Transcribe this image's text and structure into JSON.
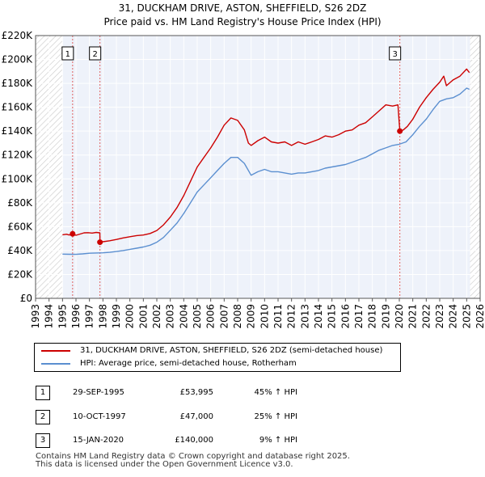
{
  "chart_data": {
    "type": "line",
    "title": "31, DUCKHAM DRIVE, ASTON, SHEFFIELD, S26 2DZ",
    "subtitle": "Price paid vs. HM Land Registry's House Price Index (HPI)",
    "xlim": [
      1993,
      2026
    ],
    "ylim": [
      0,
      220000
    ],
    "x_ticks": [
      1993,
      1994,
      1995,
      1996,
      1997,
      1998,
      1999,
      2000,
      2001,
      2002,
      2003,
      2004,
      2005,
      2006,
      2007,
      2008,
      2009,
      2010,
      2011,
      2012,
      2013,
      2014,
      2015,
      2016,
      2017,
      2018,
      2019,
      2020,
      2021,
      2022,
      2023,
      2024,
      2025,
      2026
    ],
    "y_ticks": [
      {
        "value": 0,
        "label": "£0"
      },
      {
        "value": 20000,
        "label": "£20K"
      },
      {
        "value": 40000,
        "label": "£40K"
      },
      {
        "value": 60000,
        "label": "£60K"
      },
      {
        "value": 80000,
        "label": "£80K"
      },
      {
        "value": 100000,
        "label": "£100K"
      },
      {
        "value": 120000,
        "label": "£120K"
      },
      {
        "value": 140000,
        "label": "£140K"
      },
      {
        "value": 160000,
        "label": "£160K"
      },
      {
        "value": 180000,
        "label": "£180K"
      },
      {
        "value": 200000,
        "label": "£200K"
      },
      {
        "value": 220000,
        "label": "£220K"
      }
    ],
    "hatched_ranges": [
      [
        1993,
        1995.0
      ],
      [
        2025.25,
        2026
      ]
    ],
    "series": [
      {
        "name": "31, DUCKHAM DRIVE, ASTON, SHEFFIELD, S26 2DZ (semi-detached house)",
        "color": "#cc0000",
        "points": [
          [
            1995.0,
            53200
          ],
          [
            1995.3,
            53700
          ],
          [
            1995.5,
            53000
          ],
          [
            1995.75,
            53995
          ],
          [
            1996.0,
            52800
          ],
          [
            1996.3,
            53800
          ],
          [
            1996.6,
            54800
          ],
          [
            1996.9,
            55000
          ],
          [
            1997.2,
            54600
          ],
          [
            1997.5,
            55200
          ],
          [
            1997.77,
            54800
          ],
          [
            1997.78,
            47000
          ],
          [
            1998.0,
            47400
          ],
          [
            1998.5,
            48200
          ],
          [
            1999.0,
            49300
          ],
          [
            1999.5,
            50600
          ],
          [
            2000.0,
            51600
          ],
          [
            2000.5,
            52500
          ],
          [
            2001.0,
            53000
          ],
          [
            2001.5,
            54300
          ],
          [
            2002.0,
            56800
          ],
          [
            2002.5,
            61500
          ],
          [
            2003.0,
            68000
          ],
          [
            2003.5,
            76000
          ],
          [
            2004.0,
            86000
          ],
          [
            2004.5,
            98000
          ],
          [
            2005.0,
            110000
          ],
          [
            2005.5,
            118000
          ],
          [
            2006.0,
            126000
          ],
          [
            2006.5,
            135000
          ],
          [
            2007.0,
            145000
          ],
          [
            2007.5,
            151000
          ],
          [
            2008.0,
            149000
          ],
          [
            2008.5,
            141000
          ],
          [
            2008.8,
            130000
          ],
          [
            2009.0,
            128000
          ],
          [
            2009.5,
            132000
          ],
          [
            2010.0,
            135000
          ],
          [
            2010.5,
            131000
          ],
          [
            2011.0,
            130000
          ],
          [
            2011.5,
            131000
          ],
          [
            2012.0,
            128000
          ],
          [
            2012.5,
            131000
          ],
          [
            2013.0,
            129000
          ],
          [
            2013.5,
            131000
          ],
          [
            2014.0,
            133000
          ],
          [
            2014.5,
            136000
          ],
          [
            2015.0,
            135000
          ],
          [
            2015.5,
            137000
          ],
          [
            2016.0,
            140000
          ],
          [
            2016.5,
            141000
          ],
          [
            2017.0,
            145000
          ],
          [
            2017.5,
            147000
          ],
          [
            2018.0,
            152000
          ],
          [
            2018.5,
            157000
          ],
          [
            2019.0,
            162000
          ],
          [
            2019.5,
            161000
          ],
          [
            2019.9,
            162000
          ],
          [
            2020.0,
            146000
          ],
          [
            2020.04,
            140000
          ],
          [
            2020.3,
            141000
          ],
          [
            2020.6,
            144000
          ],
          [
            2021.0,
            150000
          ],
          [
            2021.5,
            160000
          ],
          [
            2022.0,
            168000
          ],
          [
            2022.5,
            175000
          ],
          [
            2023.0,
            181000
          ],
          [
            2023.3,
            186000
          ],
          [
            2023.5,
            178000
          ],
          [
            2023.8,
            181000
          ],
          [
            2024.0,
            183000
          ],
          [
            2024.5,
            186000
          ],
          [
            2025.0,
            192000
          ],
          [
            2025.2,
            189000
          ]
        ]
      },
      {
        "name": "HPI: Average price, semi-detached house, Rotherham",
        "color": "#5b8fd0",
        "points": [
          [
            1995.0,
            37000
          ],
          [
            1995.5,
            36900
          ],
          [
            1996.0,
            36800
          ],
          [
            1996.5,
            37200
          ],
          [
            1997.0,
            37800
          ],
          [
            1997.5,
            38000
          ],
          [
            1998.0,
            38100
          ],
          [
            1998.5,
            38500
          ],
          [
            1999.0,
            39200
          ],
          [
            1999.5,
            40000
          ],
          [
            2000.0,
            41000
          ],
          [
            2000.5,
            42000
          ],
          [
            2001.0,
            43000
          ],
          [
            2001.5,
            44500
          ],
          [
            2002.0,
            47000
          ],
          [
            2002.5,
            51000
          ],
          [
            2003.0,
            57000
          ],
          [
            2003.5,
            63000
          ],
          [
            2004.0,
            71000
          ],
          [
            2004.5,
            80000
          ],
          [
            2005.0,
            89000
          ],
          [
            2005.5,
            95000
          ],
          [
            2006.0,
            101000
          ],
          [
            2006.5,
            107000
          ],
          [
            2007.0,
            113000
          ],
          [
            2007.5,
            118000
          ],
          [
            2008.0,
            118000
          ],
          [
            2008.5,
            113000
          ],
          [
            2009.0,
            103000
          ],
          [
            2009.5,
            106000
          ],
          [
            2010.0,
            108000
          ],
          [
            2010.5,
            106000
          ],
          [
            2011.0,
            106000
          ],
          [
            2011.5,
            105000
          ],
          [
            2012.0,
            104000
          ],
          [
            2012.5,
            105000
          ],
          [
            2013.0,
            105000
          ],
          [
            2013.5,
            106000
          ],
          [
            2014.0,
            107000
          ],
          [
            2014.5,
            109000
          ],
          [
            2015.0,
            110000
          ],
          [
            2015.5,
            111000
          ],
          [
            2016.0,
            112000
          ],
          [
            2016.5,
            114000
          ],
          [
            2017.0,
            116000
          ],
          [
            2017.5,
            118000
          ],
          [
            2018.0,
            121000
          ],
          [
            2018.5,
            124000
          ],
          [
            2019.0,
            126000
          ],
          [
            2019.5,
            128000
          ],
          [
            2020.0,
            129000
          ],
          [
            2020.5,
            131000
          ],
          [
            2021.0,
            137000
          ],
          [
            2021.5,
            144000
          ],
          [
            2022.0,
            150000
          ],
          [
            2022.5,
            158000
          ],
          [
            2023.0,
            165000
          ],
          [
            2023.5,
            167000
          ],
          [
            2024.0,
            168000
          ],
          [
            2024.5,
            171000
          ],
          [
            2025.0,
            176000
          ],
          [
            2025.2,
            175000
          ]
        ]
      }
    ],
    "sales": [
      {
        "id": "1",
        "x": 1995.75,
        "price": 53995
      },
      {
        "id": "2",
        "x": 1997.78,
        "price": 47000
      },
      {
        "id": "3",
        "x": 2020.04,
        "price": 140000
      }
    ]
  },
  "legend": {
    "property_label": "31, DUCKHAM DRIVE, ASTON, SHEFFIELD, S26 2DZ (semi-detached house)",
    "hpi_label": "HPI: Average price, semi-detached house, Rotherham"
  },
  "sales_table": [
    {
      "id": "1",
      "date": "29-SEP-1995",
      "price": "£53,995",
      "hpi": "45% ↑ HPI"
    },
    {
      "id": "2",
      "date": "10-OCT-1997",
      "price": "£47,000",
      "hpi": "25% ↑ HPI"
    },
    {
      "id": "3",
      "date": "15-JAN-2020",
      "price": "£140,000",
      "hpi": "9% ↑ HPI"
    }
  ],
  "footer": {
    "line1": "Contains HM Land Registry data © Crown copyright and database right 2025.",
    "line2": "This data is licensed under the Open Government Licence v3.0."
  }
}
